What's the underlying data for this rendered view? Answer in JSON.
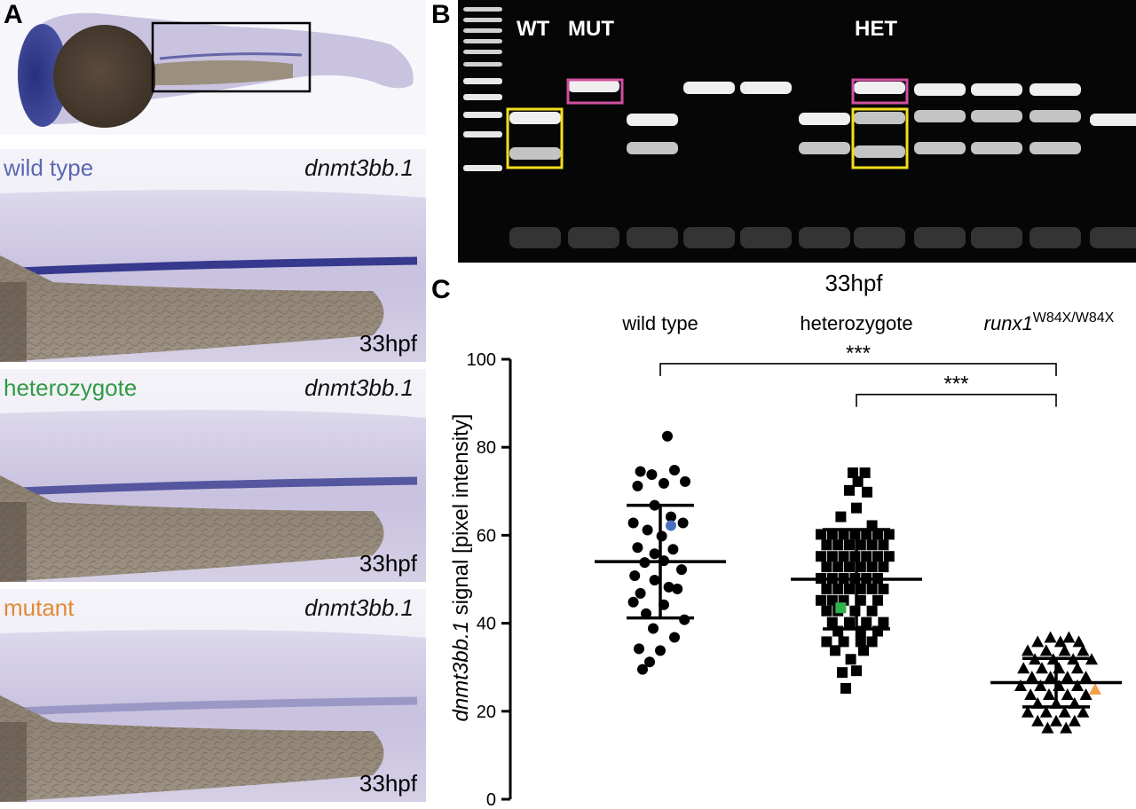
{
  "panel_a": {
    "letter": "A",
    "sections": [
      {
        "condition": "wild type",
        "gene": "dnmt3bb.1",
        "stage": "33hpf",
        "color": "#5b67b2",
        "stain": 0.95
      },
      {
        "condition": "heterozygote",
        "gene": "dnmt3bb.1",
        "stage": "33hpf",
        "color": "#2f9a44",
        "stain": 0.75
      },
      {
        "condition": "mutant",
        "gene": "dnmt3bb.1",
        "stage": "33hpf",
        "color": "#e08a35",
        "stain": 0.3
      }
    ]
  },
  "panel_b": {
    "letter": "B",
    "labels": {
      "wt": "WT",
      "mut": "MUT",
      "het": "HET"
    },
    "genotype_box_colors": {
      "upper_band": "#d24fa0",
      "lower_band": "#f2df1c"
    }
  },
  "panel_c": {
    "letter": "C",
    "title": "33hpf",
    "group_labels": [
      "wild type",
      "heterozygote"
    ],
    "mutant_label_main": "runx1",
    "mutant_label_sup": "W84X/W84X",
    "significance": [
      "***",
      "***"
    ],
    "ylabel_gene": "dnmt3bb.1",
    "ylabel_rest": " signal [pixel intensity]"
  },
  "chart_data": {
    "type": "scatter",
    "title": "33hpf",
    "ylabel": "dnmt3bb.1 signal [pixel intensity]",
    "ylim": [
      0,
      100
    ],
    "yticks": [
      0,
      20,
      40,
      60,
      80,
      100
    ],
    "grid": false,
    "categories": [
      "wild type",
      "heterozygote",
      "runx1 W84X/W84X"
    ],
    "series": [
      {
        "category": "wild type",
        "marker": "circle",
        "mean": 54,
        "sd_upper": 66.8,
        "sd_lower": 41.2,
        "highlight": {
          "index": 18,
          "color": "#4a6fc0"
        },
        "points": [
          [
            0.1,
            82.5
          ],
          [
            -0.28,
            74.5
          ],
          [
            -0.12,
            73.8
          ],
          [
            0.2,
            74.8
          ],
          [
            -0.32,
            71.2
          ],
          [
            0.05,
            71.8
          ],
          [
            0.35,
            72.2
          ],
          [
            -0.08,
            66.8
          ],
          [
            0.15,
            64.2
          ],
          [
            -0.38,
            62.8
          ],
          [
            0.32,
            62.8
          ],
          [
            -0.18,
            61.2
          ],
          [
            0.02,
            59.8
          ],
          [
            -0.32,
            57.2
          ],
          [
            -0.08,
            55.8
          ],
          [
            0.18,
            56.8
          ],
          [
            -0.22,
            53.8
          ],
          [
            0.05,
            54.2
          ],
          [
            0.15,
            62.2
          ],
          [
            -0.36,
            50.8
          ],
          [
            0.3,
            52.2
          ],
          [
            -0.08,
            49.8
          ],
          [
            0.12,
            48.2
          ],
          [
            -0.28,
            46.8
          ],
          [
            0.24,
            47.8
          ],
          [
            -0.38,
            44.8
          ],
          [
            0.05,
            44.2
          ],
          [
            -0.2,
            42.2
          ],
          [
            0.34,
            40.8
          ],
          [
            -0.1,
            38.8
          ],
          [
            0.2,
            36.8
          ],
          [
            -0.3,
            34.2
          ],
          [
            0.0,
            33.8
          ],
          [
            -0.15,
            31.2
          ],
          [
            -0.25,
            29.5
          ]
        ]
      },
      {
        "category": "heterozygote",
        "marker": "square",
        "mean": 50,
        "sd_upper": 61.3,
        "sd_lower": 38.7,
        "highlight": {
          "index": 55,
          "color": "#2fb24c"
        },
        "points": [
          [
            -0.05,
            74.2
          ],
          [
            0.12,
            74.2
          ],
          [
            0.02,
            72.2
          ],
          [
            -0.1,
            70.2
          ],
          [
            0.15,
            69.8
          ],
          [
            0.0,
            66.2
          ],
          [
            -0.22,
            64.2
          ],
          [
            0.22,
            62.2
          ],
          [
            -0.5,
            60.2
          ],
          [
            -0.34,
            60.2
          ],
          [
            -0.18,
            60.2
          ],
          [
            -0.02,
            60.2
          ],
          [
            0.14,
            60.2
          ],
          [
            0.3,
            60.2
          ],
          [
            0.46,
            60.2
          ],
          [
            -0.42,
            57.8
          ],
          [
            -0.26,
            57.8
          ],
          [
            -0.1,
            57.8
          ],
          [
            0.06,
            57.8
          ],
          [
            0.22,
            57.8
          ],
          [
            0.38,
            57.8
          ],
          [
            -0.5,
            55.2
          ],
          [
            -0.34,
            55.2
          ],
          [
            -0.18,
            55.2
          ],
          [
            -0.02,
            55.2
          ],
          [
            0.14,
            55.2
          ],
          [
            0.3,
            55.2
          ],
          [
            0.46,
            55.2
          ],
          [
            -0.42,
            52.8
          ],
          [
            -0.26,
            52.8
          ],
          [
            -0.1,
            52.8
          ],
          [
            0.06,
            52.8
          ],
          [
            0.22,
            52.8
          ],
          [
            0.38,
            52.8
          ],
          [
            -0.5,
            50.2
          ],
          [
            -0.34,
            50.2
          ],
          [
            -0.18,
            50.2
          ],
          [
            -0.02,
            50.2
          ],
          [
            0.14,
            50.2
          ],
          [
            0.3,
            50.2
          ],
          [
            -0.42,
            47.8
          ],
          [
            -0.26,
            47.8
          ],
          [
            -0.1,
            47.8
          ],
          [
            0.06,
            47.8
          ],
          [
            0.22,
            47.8
          ],
          [
            0.38,
            47.8
          ],
          [
            -0.5,
            45.2
          ],
          [
            -0.34,
            45.2
          ],
          [
            -0.18,
            45.2
          ],
          [
            0.06,
            45.2
          ],
          [
            0.3,
            45.2
          ],
          [
            -0.42,
            42.8
          ],
          [
            -0.26,
            42.8
          ],
          [
            -0.02,
            42.8
          ],
          [
            0.22,
            42.8
          ],
          [
            -0.22,
            43.5
          ],
          [
            -0.34,
            40.2
          ],
          [
            -0.1,
            40.2
          ],
          [
            0.14,
            40.2
          ],
          [
            0.38,
            40.2
          ],
          [
            -0.26,
            38.2
          ],
          [
            0.06,
            38.2
          ],
          [
            0.3,
            38.2
          ],
          [
            -0.42,
            35.8
          ],
          [
            -0.18,
            35.8
          ],
          [
            0.06,
            35.8
          ],
          [
            0.22,
            35.8
          ],
          [
            -0.3,
            33.8
          ],
          [
            0.1,
            33.8
          ],
          [
            -0.08,
            31.8
          ],
          [
            0.0,
            29.2
          ],
          [
            -0.2,
            28.8
          ],
          [
            -0.15,
            25.2
          ]
        ]
      },
      {
        "category": "runx1 W84X/W84X",
        "marker": "triangle",
        "mean": 26.5,
        "sd_upper": 32,
        "sd_lower": 21,
        "highlight": {
          "index": 25,
          "color": "#f0a048"
        },
        "points": [
          [
            -0.08,
            36.8
          ],
          [
            0.18,
            36.8
          ],
          [
            -0.26,
            35.8
          ],
          [
            0.06,
            35.8
          ],
          [
            0.32,
            35.8
          ],
          [
            -0.4,
            33.8
          ],
          [
            -0.14,
            33.8
          ],
          [
            0.12,
            33.8
          ],
          [
            0.38,
            33.8
          ],
          [
            -0.3,
            31.8
          ],
          [
            -0.04,
            31.8
          ],
          [
            0.24,
            31.8
          ],
          [
            0.5,
            31.8
          ],
          [
            -0.46,
            29.8
          ],
          [
            -0.2,
            29.8
          ],
          [
            0.04,
            29.8
          ],
          [
            0.3,
            29.8
          ],
          [
            -0.34,
            27.8
          ],
          [
            -0.08,
            27.8
          ],
          [
            0.16,
            27.8
          ],
          [
            0.42,
            27.8
          ],
          [
            -0.5,
            25.8
          ],
          [
            -0.22,
            25.8
          ],
          [
            0.04,
            25.8
          ],
          [
            0.3,
            25.8
          ],
          [
            0.55,
            25.0
          ],
          [
            -0.36,
            23.8
          ],
          [
            -0.1,
            23.8
          ],
          [
            0.16,
            23.8
          ],
          [
            0.42,
            23.8
          ],
          [
            -0.26,
            21.8
          ],
          [
            0.0,
            21.8
          ],
          [
            0.26,
            21.8
          ],
          [
            -0.4,
            19.8
          ],
          [
            -0.14,
            19.8
          ],
          [
            0.12,
            19.8
          ],
          [
            0.38,
            19.8
          ],
          [
            -0.26,
            17.8
          ],
          [
            0.0,
            17.8
          ],
          [
            0.26,
            17.8
          ],
          [
            -0.12,
            16.2
          ],
          [
            0.14,
            16.2
          ]
        ]
      }
    ],
    "significance_brackets": [
      {
        "from": "wild type",
        "to": "runx1 W84X/W84X",
        "y": 99,
        "label": "***"
      },
      {
        "from": "heterozygote",
        "to": "runx1 W84X/W84X",
        "y": 92,
        "label": "***"
      }
    ]
  }
}
